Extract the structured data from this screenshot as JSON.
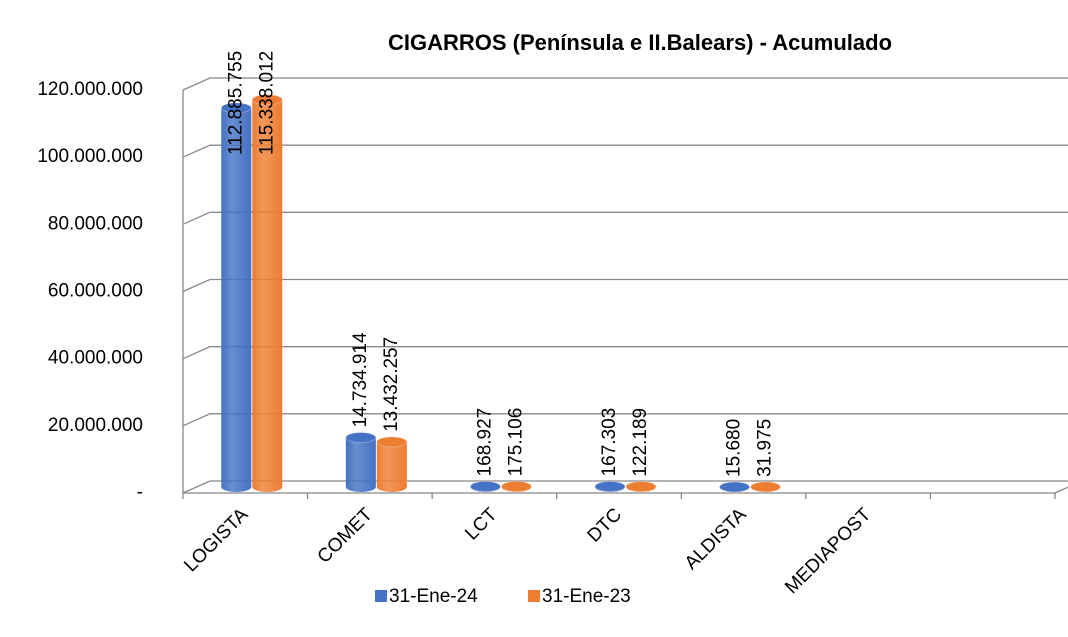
{
  "chart_data": {
    "type": "bar3d",
    "title": "CIGARROS  (Península e II.Balears) - Acumulado",
    "categories": [
      "LOGISTA",
      "COMET",
      "LCT",
      "DTC",
      "ALDISTA",
      "MEDIAPOST",
      null
    ],
    "series": [
      {
        "name": "31-Ene-24",
        "color": "#4472c4",
        "values": [
          112885755,
          14734914,
          168927,
          167303,
          15680,
          null,
          null
        ],
        "value_labels": [
          "112.885.755",
          "14.734.914",
          "168.927",
          "167.303",
          "15.680",
          null,
          null
        ]
      },
      {
        "name": "31-Ene-23",
        "color": "#ed7d31",
        "values": [
          115338012,
          13432257,
          175106,
          122189,
          31975,
          null,
          null
        ],
        "value_labels": [
          "115.338.012",
          "13.432.257",
          "175.106",
          "122.189",
          "31.975",
          null,
          null
        ]
      }
    ],
    "ylim": [
      0,
      120000000
    ],
    "yticks": [
      {
        "value": 0,
        "label": "-"
      },
      {
        "value": 20000000,
        "label": "20.000.000"
      },
      {
        "value": 40000000,
        "label": "40.000.000"
      },
      {
        "value": 60000000,
        "label": "60.000.000"
      },
      {
        "value": 80000000,
        "label": "80.000.000"
      },
      {
        "value": 100000000,
        "label": "100.000.000"
      },
      {
        "value": 120000000,
        "label": "120.000.000"
      }
    ],
    "grid": true,
    "legend": "bottom"
  }
}
